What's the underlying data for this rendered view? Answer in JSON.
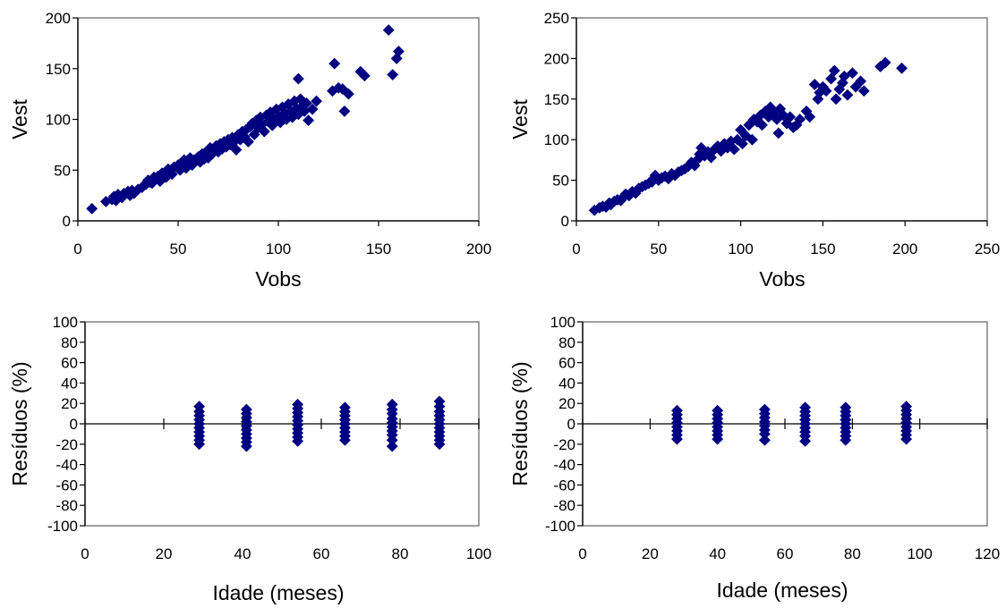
{
  "colors": {
    "marker": "#000080",
    "plot_border": "#808080",
    "axis": "#000000",
    "background": "#ffffff"
  },
  "chart_data": [
    {
      "type": "scatter",
      "title": "",
      "xlabel": "Vobs",
      "ylabel": "Vest",
      "xlim": [
        0,
        200
      ],
      "ylim": [
        0,
        200
      ],
      "xticks": [
        0,
        50,
        100,
        150,
        200
      ],
      "yticks": [
        0,
        50,
        100,
        150,
        200
      ],
      "marker": "diamond",
      "grid": false,
      "legend": "none",
      "points": [
        [
          7,
          12
        ],
        [
          14,
          19
        ],
        [
          17,
          21
        ],
        [
          18,
          24
        ],
        [
          19,
          20
        ],
        [
          20,
          26
        ],
        [
          22,
          23
        ],
        [
          23,
          27
        ],
        [
          25,
          29
        ],
        [
          26,
          25
        ],
        [
          27,
          30
        ],
        [
          28,
          27
        ],
        [
          30,
          31
        ],
        [
          32,
          33
        ],
        [
          33,
          35
        ],
        [
          34,
          36
        ],
        [
          35,
          40
        ],
        [
          36,
          38
        ],
        [
          37,
          37
        ],
        [
          38,
          43
        ],
        [
          39,
          41
        ],
        [
          40,
          44
        ],
        [
          41,
          39
        ],
        [
          42,
          47
        ],
        [
          43,
          45
        ],
        [
          44,
          43
        ],
        [
          45,
          51
        ],
        [
          46,
          48
        ],
        [
          47,
          46
        ],
        [
          48,
          53
        ],
        [
          50,
          55
        ],
        [
          51,
          50
        ],
        [
          52,
          57
        ],
        [
          53,
          60
        ],
        [
          54,
          52
        ],
        [
          55,
          58
        ],
        [
          56,
          62
        ],
        [
          57,
          55
        ],
        [
          58,
          60
        ],
        [
          60,
          63
        ],
        [
          61,
          58
        ],
        [
          62,
          66
        ],
        [
          63,
          61
        ],
        [
          64,
          68
        ],
        [
          65,
          62
        ],
        [
          66,
          72
        ],
        [
          67,
          66
        ],
        [
          68,
          70
        ],
        [
          69,
          74
        ],
        [
          70,
          68
        ],
        [
          71,
          76
        ],
        [
          72,
          71
        ],
        [
          73,
          78
        ],
        [
          74,
          73
        ],
        [
          75,
          80
        ],
        [
          76,
          75
        ],
        [
          77,
          82
        ],
        [
          78,
          78
        ],
        [
          79,
          70
        ],
        [
          80,
          85
        ],
        [
          81,
          80
        ],
        [
          82,
          88
        ],
        [
          83,
          83
        ],
        [
          84,
          90
        ],
        [
          85,
          78
        ],
        [
          86,
          93
        ],
        [
          87,
          96
        ],
        [
          88,
          85
        ],
        [
          89,
          99
        ],
        [
          90,
          92
        ],
        [
          91,
          102
        ],
        [
          92,
          95
        ],
        [
          93,
          88
        ],
        [
          94,
          104
        ],
        [
          95,
          98
        ],
        [
          96,
          107
        ],
        [
          97,
          94
        ],
        [
          98,
          100
        ],
        [
          99,
          110
        ],
        [
          100,
          103
        ],
        [
          101,
          97
        ],
        [
          102,
          112
        ],
        [
          103,
          106
        ],
        [
          104,
          100
        ],
        [
          105,
          115
        ],
        [
          106,
          108
        ],
        [
          107,
          102
        ],
        [
          108,
          118
        ],
        [
          109,
          111
        ],
        [
          110,
          105
        ],
        [
          111,
          120
        ],
        [
          112,
          113
        ],
        [
          113,
          108
        ],
        [
          114,
          116
        ],
        [
          115,
          99
        ],
        [
          117,
          110
        ],
        [
          119,
          118
        ],
        [
          110,
          140
        ],
        [
          127,
          128
        ],
        [
          128,
          155
        ],
        [
          130,
          131
        ],
        [
          132,
          130
        ],
        [
          133,
          108
        ],
        [
          135,
          125
        ],
        [
          141,
          147
        ],
        [
          143,
          143
        ],
        [
          155,
          188
        ],
        [
          157,
          144
        ],
        [
          159,
          160
        ],
        [
          160,
          167
        ]
      ]
    },
    {
      "type": "scatter",
      "title": "",
      "xlabel": "Vobs",
      "ylabel": "Vest",
      "xlim": [
        0,
        250
      ],
      "ylim": [
        0,
        250
      ],
      "xticks": [
        0,
        50,
        100,
        150,
        200,
        250
      ],
      "yticks": [
        0,
        50,
        100,
        150,
        200,
        250
      ],
      "marker": "diamond",
      "grid": false,
      "legend": "none",
      "points": [
        [
          11,
          13
        ],
        [
          14,
          16
        ],
        [
          16,
          18
        ],
        [
          18,
          17
        ],
        [
          20,
          22
        ],
        [
          21,
          20
        ],
        [
          23,
          24
        ],
        [
          25,
          26
        ],
        [
          27,
          25
        ],
        [
          29,
          30
        ],
        [
          30,
          33
        ],
        [
          32,
          31
        ],
        [
          34,
          36
        ],
        [
          36,
          34
        ],
        [
          38,
          40
        ],
        [
          40,
          42
        ],
        [
          42,
          44
        ],
        [
          44,
          46
        ],
        [
          46,
          48
        ],
        [
          47,
          52
        ],
        [
          48,
          56
        ],
        [
          50,
          50
        ],
        [
          52,
          53
        ],
        [
          54,
          55
        ],
        [
          56,
          52
        ],
        [
          58,
          58
        ],
        [
          60,
          56
        ],
        [
          62,
          60
        ],
        [
          64,
          62
        ],
        [
          66,
          64
        ],
        [
          68,
          67
        ],
        [
          70,
          72
        ],
        [
          72,
          68
        ],
        [
          74,
          76
        ],
        [
          75,
          82
        ],
        [
          76,
          90
        ],
        [
          78,
          80
        ],
        [
          80,
          85
        ],
        [
          82,
          78
        ],
        [
          84,
          88
        ],
        [
          86,
          92
        ],
        [
          88,
          86
        ],
        [
          90,
          95
        ],
        [
          92,
          90
        ],
        [
          94,
          98
        ],
        [
          96,
          88
        ],
        [
          98,
          100
        ],
        [
          100,
          112
        ],
        [
          101,
          95
        ],
        [
          103,
          105
        ],
        [
          105,
          118
        ],
        [
          107,
          100
        ],
        [
          108,
          125
        ],
        [
          110,
          122
        ],
        [
          112,
          130
        ],
        [
          113,
          118
        ],
        [
          115,
          135
        ],
        [
          117,
          128
        ],
        [
          118,
          140
        ],
        [
          120,
          132
        ],
        [
          122,
          125
        ],
        [
          123,
          108
        ],
        [
          124,
          138
        ],
        [
          126,
          130
        ],
        [
          128,
          120
        ],
        [
          130,
          128
        ],
        [
          132,
          115
        ],
        [
          134,
          118
        ],
        [
          136,
          125
        ],
        [
          140,
          135
        ],
        [
          142,
          128
        ],
        [
          145,
          168
        ],
        [
          147,
          150
        ],
        [
          150,
          165
        ],
        [
          152,
          160
        ],
        [
          155,
          175
        ],
        [
          157,
          185
        ],
        [
          160,
          162
        ],
        [
          162,
          170
        ],
        [
          165,
          155
        ],
        [
          168,
          182
        ],
        [
          170,
          165
        ],
        [
          173,
          172
        ],
        [
          175,
          160
        ],
        [
          185,
          190
        ],
        [
          188,
          195
        ],
        [
          198,
          188
        ],
        [
          148,
          158
        ],
        [
          158,
          150
        ],
        [
          163,
          178
        ]
      ]
    },
    {
      "type": "scatter",
      "title": "",
      "xlabel": "Idade (meses)",
      "ylabel": "Resíduos (%)",
      "xlim": [
        0,
        100
      ],
      "ylim": [
        -100,
        100
      ],
      "xticks": [
        0,
        20,
        40,
        60,
        80,
        100
      ],
      "yticks": [
        100,
        80,
        60,
        40,
        20,
        0,
        -20,
        -40,
        -60,
        -80,
        -100
      ],
      "marker": "diamond",
      "grid": false,
      "legend": "none",
      "reference_line": 0,
      "columns": [
        {
          "x": 29,
          "residuals": [
            17,
            12,
            8,
            4,
            0,
            -4,
            -8,
            -12,
            -16,
            -20
          ]
        },
        {
          "x": 41,
          "residuals": [
            14,
            10,
            6,
            2,
            -2,
            -6,
            -10,
            -14,
            -18,
            -22
          ]
        },
        {
          "x": 54,
          "residuals": [
            19,
            15,
            11,
            7,
            3,
            -1,
            -5,
            -9,
            -13,
            -17
          ]
        },
        {
          "x": 66,
          "residuals": [
            16,
            12,
            8,
            4,
            0,
            -4,
            -8,
            -12,
            -16
          ]
        },
        {
          "x": 78,
          "residuals": [
            19,
            14,
            10,
            5,
            1,
            -3,
            -7,
            -11,
            -16,
            -22
          ]
        },
        {
          "x": 90,
          "residuals": [
            22,
            17,
            12,
            8,
            4,
            0,
            -4,
            -8,
            -12,
            -16,
            -20
          ]
        }
      ]
    },
    {
      "type": "scatter",
      "title": "",
      "xlabel": "Idade (meses)",
      "ylabel": "Resíduos (%)",
      "xlim": [
        0,
        120
      ],
      "ylim": [
        -100,
        100
      ],
      "xticks": [
        0,
        20,
        40,
        60,
        80,
        100,
        120
      ],
      "yticks": [
        100,
        80,
        60,
        40,
        20,
        0,
        -20,
        -40,
        -60,
        -80,
        -100
      ],
      "marker": "diamond",
      "grid": false,
      "legend": "none",
      "reference_line": 0,
      "columns": [
        {
          "x": 28,
          "residuals": [
            13,
            9,
            5,
            1,
            -3,
            -7,
            -11,
            -15
          ]
        },
        {
          "x": 40,
          "residuals": [
            13,
            9,
            5,
            1,
            -3,
            -7,
            -11,
            -15
          ]
        },
        {
          "x": 54,
          "residuals": [
            14,
            10,
            6,
            2,
            -2,
            -6,
            -10,
            -16
          ]
        },
        {
          "x": 66,
          "residuals": [
            16,
            12,
            8,
            4,
            0,
            -4,
            -8,
            -12,
            -17
          ]
        },
        {
          "x": 78,
          "residuals": [
            16,
            12,
            8,
            4,
            0,
            -4,
            -8,
            -12,
            -16
          ]
        },
        {
          "x": 96,
          "residuals": [
            17,
            13,
            9,
            5,
            1,
            -3,
            -7,
            -11,
            -15
          ]
        }
      ]
    }
  ]
}
